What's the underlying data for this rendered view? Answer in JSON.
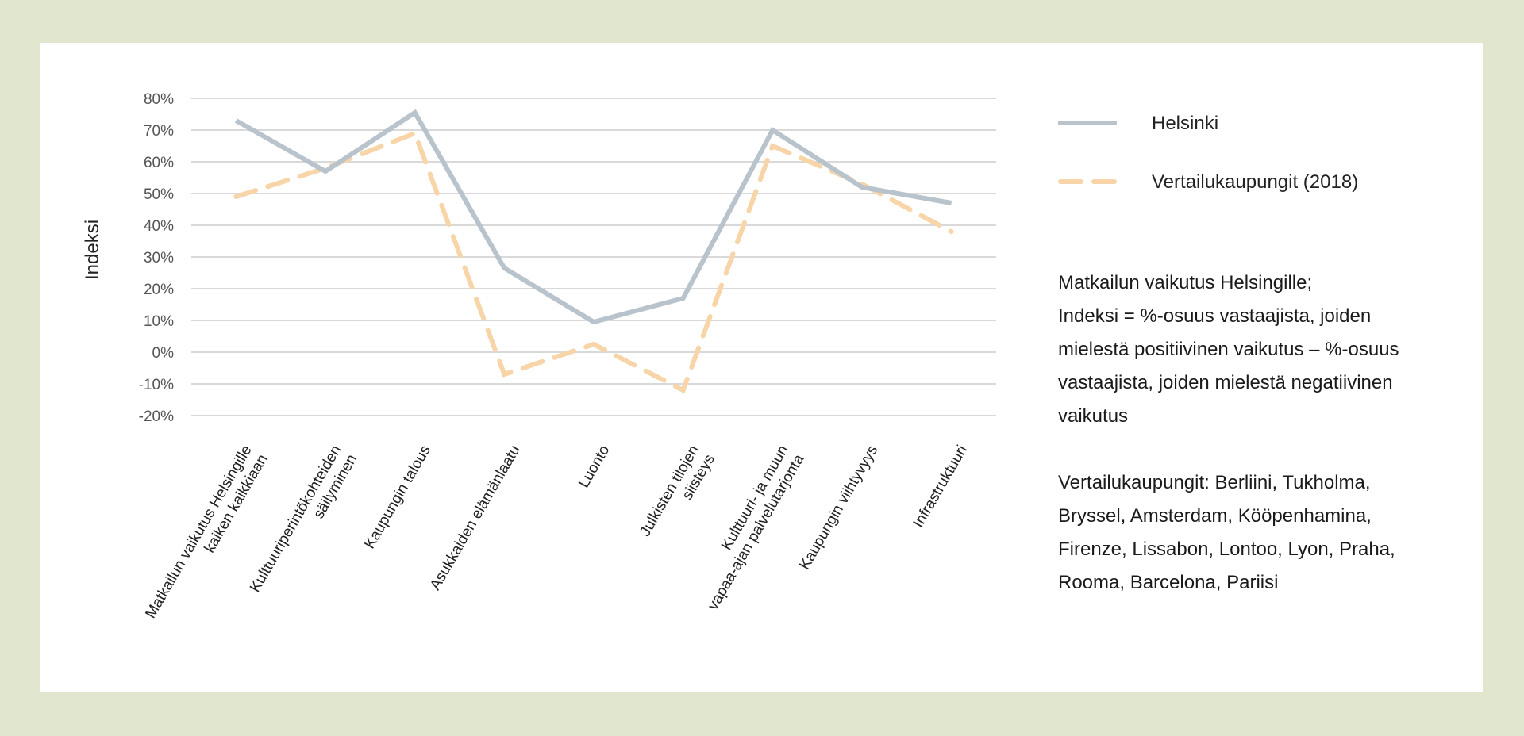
{
  "chart_data": {
    "type": "line",
    "title": "",
    "xlabel": "",
    "ylabel": "Indeksi",
    "ylim": [
      -20,
      80
    ],
    "yticks": [
      80,
      70,
      60,
      50,
      40,
      30,
      20,
      10,
      0,
      -10,
      -20
    ],
    "ytick_labels": [
      "80%",
      "70%",
      "60%",
      "50%",
      "40%",
      "30%",
      "20%",
      "10%",
      "0%",
      "-10%",
      "-20%"
    ],
    "grid": true,
    "legend_position": "top-right",
    "categories": [
      [
        "Matkailun vaikutus Helsingille",
        "kaiken kaikkiaan"
      ],
      [
        "Kulttuuriperintökohteiden",
        "säilyminen"
      ],
      [
        "Kaupungin talous"
      ],
      [
        "Asukkaiden elämänlaatu"
      ],
      [
        "Luonto"
      ],
      [
        "Julkisten tilojen",
        "siisteys"
      ],
      [
        "Kulttuuri- ja muun",
        "vapaa-ajan palvelutarjonta"
      ],
      [
        "Kaupungin viihtyvyys"
      ],
      [
        "Infrastruktuuri"
      ]
    ],
    "series": [
      {
        "name": "Helsinki",
        "color": "#b8c3cc",
        "style": "solid",
        "values": [
          73,
          57,
          75.5,
          26.5,
          9.5,
          17,
          70,
          52,
          47
        ]
      },
      {
        "name": "Vertailukaupungit (2018)",
        "color": "#f8d5a8",
        "style": "dashed",
        "values": [
          49,
          58,
          69,
          -7,
          2.5,
          -12,
          65,
          53,
          38
        ]
      }
    ]
  },
  "notes": {
    "line1": "Matkailun vaikutus Helsingille;",
    "line2": "Indeksi = %-osuus  vastaajista, joiden",
    "line3": "mielestä positiivinen vaikutus – %-osuus",
    "line4": "vastaajista, joiden mielestä negatiivinen",
    "line5": "vaikutus",
    "line6": "Vertailukaupungit: Berliini, Tukholma,",
    "line7": "Bryssel, Amsterdam, Kööpenhamina,",
    "line8": "Firenze, Lissabon, Lontoo, Lyon, Praha,",
    "line9": "Rooma, Barcelona, Pariisi"
  }
}
